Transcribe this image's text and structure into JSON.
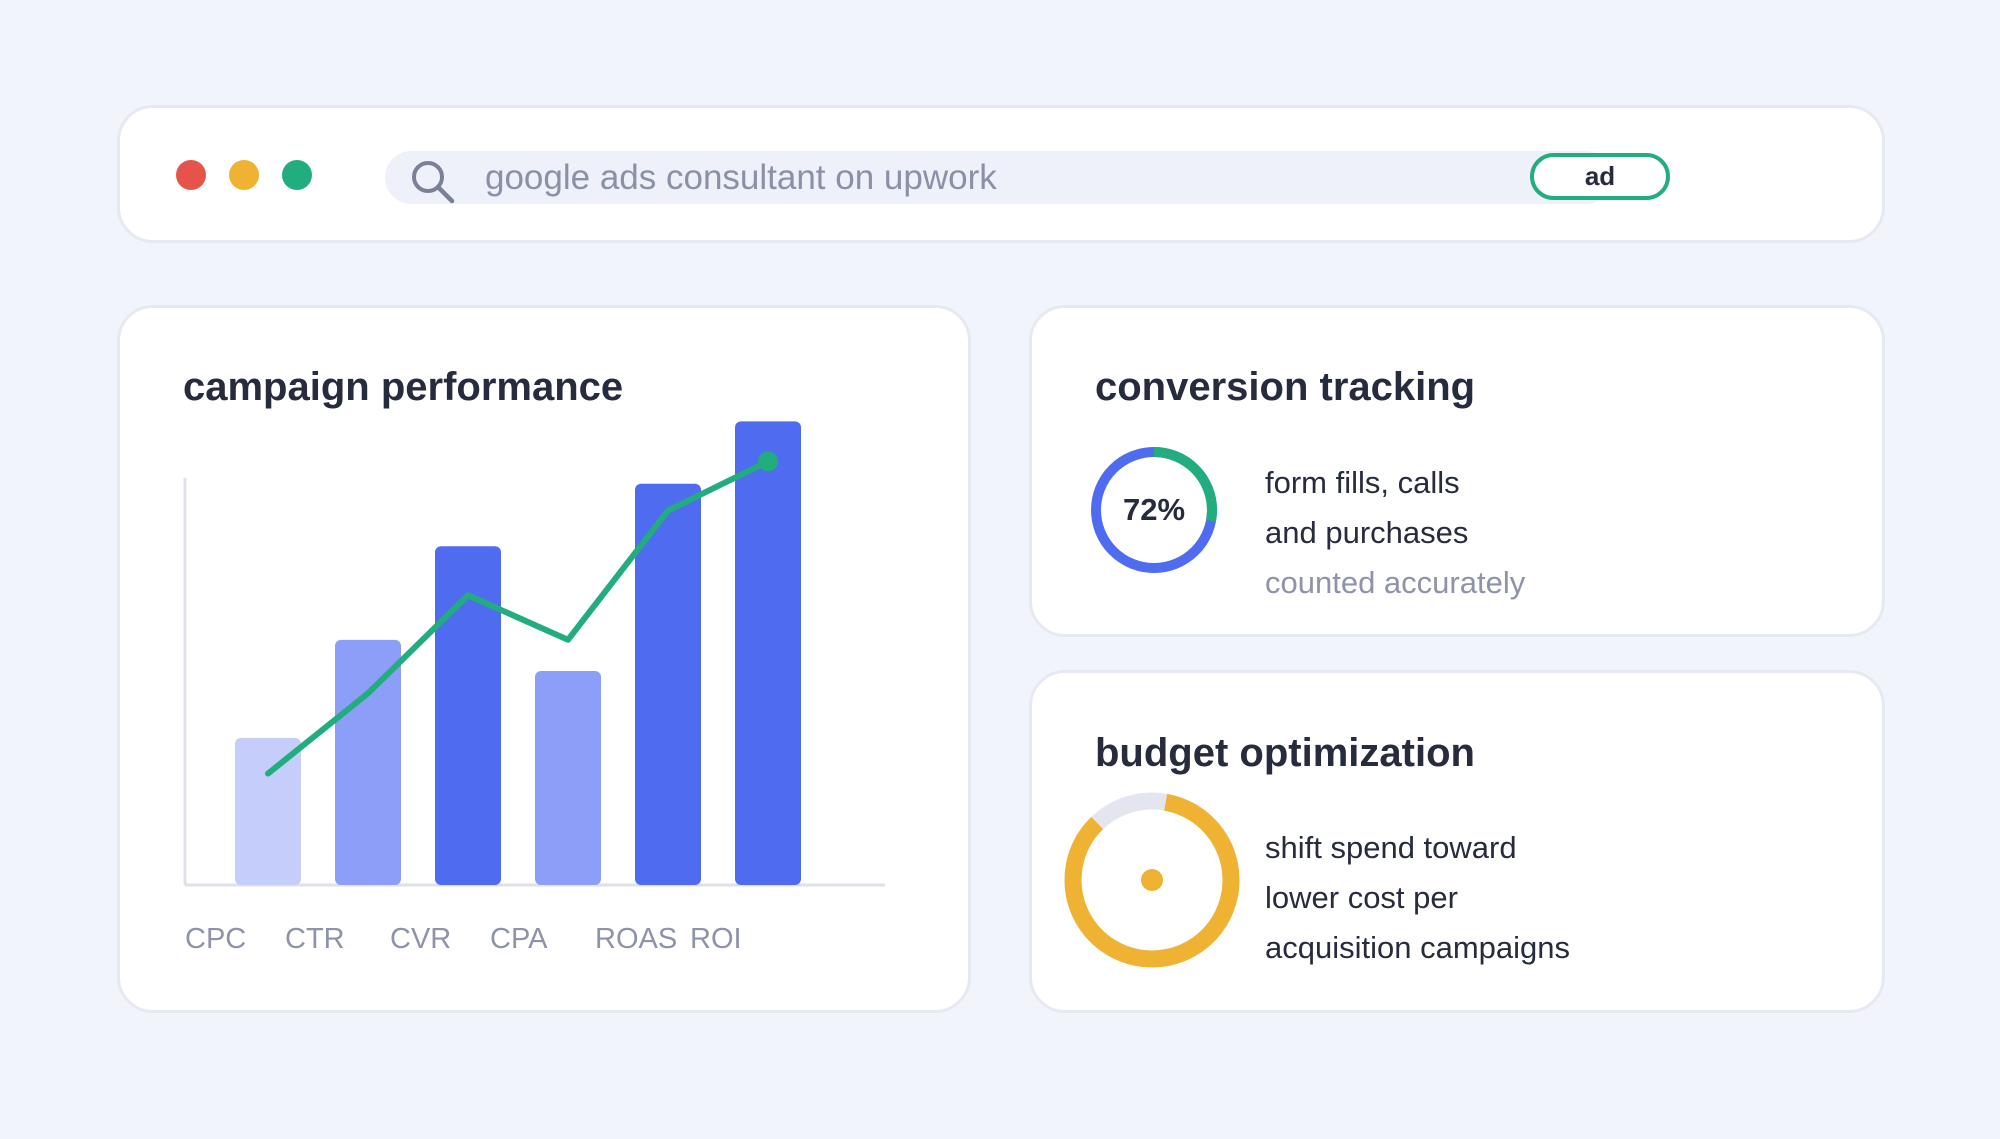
{
  "colors": {
    "background": "#f2f4fb",
    "dot_red": "#e5534b",
    "dot_yellow": "#f0b232",
    "dot_green": "#22ad7e",
    "primary_blue": "#4f6bf0",
    "accent_green": "#22ad7e",
    "accent_orange": "#f0b232"
  },
  "browser": {
    "search_icon": "search-icon",
    "search_text": "google ads consultant on upwork",
    "badge": "ad"
  },
  "campaign": {
    "title": "campaign performance"
  },
  "chart_data": {
    "type": "bar",
    "categories": [
      "CPC",
      "CTR",
      "CVR",
      "CPA",
      "ROAS",
      "ROI"
    ],
    "values": [
      33,
      55,
      76,
      48,
      90,
      104
    ],
    "bar_colors": [
      "#c5cdfb",
      "#8c9ef8",
      "#4f6bf0",
      "#8c9ef8",
      "#4f6bf0",
      "#4f6bf0"
    ],
    "series": [
      {
        "values": [
          25,
          43,
          65,
          55,
          84,
          95
        ],
        "type": "line",
        "color": "#22ad7e"
      }
    ],
    "ylim": [
      0,
      107
    ],
    "grid": false,
    "axes": "left-and-bottom lines, no ticks"
  },
  "conversion": {
    "title": "conversion tracking",
    "percent_label": "72%",
    "percent_value": 72,
    "desc_line1": "form fills, calls",
    "desc_line2": "and purchases",
    "desc_line3": "counted accurately"
  },
  "budget": {
    "title": "budget optimization",
    "ring_fraction": 0.85,
    "desc_line1": "shift spend toward",
    "desc_line2": "lower cost per",
    "desc_line3": "acquisition campaigns"
  }
}
